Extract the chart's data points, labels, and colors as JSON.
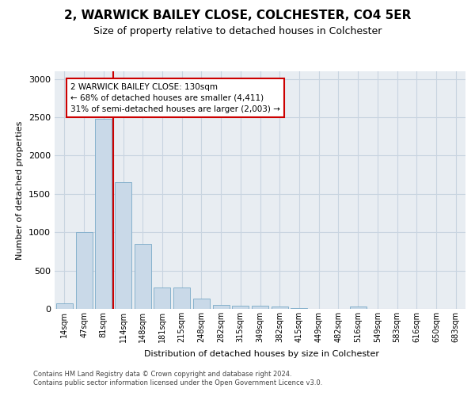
{
  "title": "2, WARWICK BAILEY CLOSE, COLCHESTER, CO4 5ER",
  "subtitle": "Size of property relative to detached houses in Colchester",
  "xlabel": "Distribution of detached houses by size in Colchester",
  "ylabel": "Number of detached properties",
  "categories": [
    "14sqm",
    "47sqm",
    "81sqm",
    "114sqm",
    "148sqm",
    "181sqm",
    "215sqm",
    "248sqm",
    "282sqm",
    "315sqm",
    "349sqm",
    "382sqm",
    "415sqm",
    "449sqm",
    "482sqm",
    "516sqm",
    "549sqm",
    "583sqm",
    "616sqm",
    "650sqm",
    "683sqm"
  ],
  "values": [
    70,
    1000,
    2480,
    1650,
    850,
    280,
    280,
    130,
    55,
    40,
    40,
    35,
    10,
    0,
    0,
    30,
    0,
    0,
    0,
    0,
    0
  ],
  "bar_color": "#c9d9e8",
  "bar_edge_color": "#7aaac8",
  "grid_color": "#c8d4e0",
  "background_color": "#e8edf2",
  "vline_color": "#cc0000",
  "vline_position": 2.5,
  "annotation_text": "2 WARWICK BAILEY CLOSE: 130sqm\n← 68% of detached houses are smaller (4,411)\n31% of semi-detached houses are larger (2,003) →",
  "annotation_box_facecolor": "#ffffff",
  "annotation_box_edgecolor": "#cc0000",
  "footer_line1": "Contains HM Land Registry data © Crown copyright and database right 2024.",
  "footer_line2": "Contains public sector information licensed under the Open Government Licence v3.0.",
  "ylim": [
    0,
    3100
  ],
  "title_fontsize": 11,
  "subtitle_fontsize": 9,
  "annot_fontsize": 7.5,
  "tick_fontsize": 7,
  "ylabel_fontsize": 8,
  "xlabel_fontsize": 8
}
